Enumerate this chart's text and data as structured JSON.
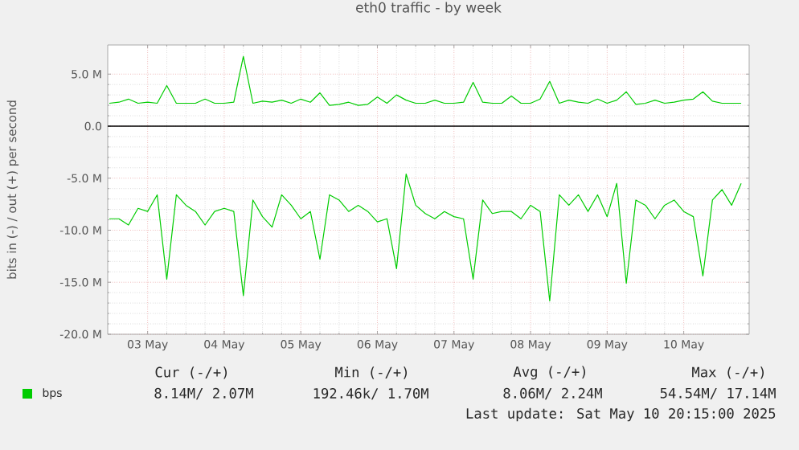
{
  "chart_data": {
    "type": "line",
    "title": "eth0 traffic - by week",
    "ylabel": "bits in (-) / out (+) per second",
    "x": [
      "2025-05-02T12:00",
      "2025-05-02T15:00",
      "2025-05-02T18:00",
      "2025-05-02T21:00",
      "2025-05-03T00:00",
      "2025-05-03T03:00",
      "2025-05-03T06:00",
      "2025-05-03T09:00",
      "2025-05-03T12:00",
      "2025-05-03T15:00",
      "2025-05-03T18:00",
      "2025-05-03T21:00",
      "2025-05-04T00:00",
      "2025-05-04T03:00",
      "2025-05-04T06:00",
      "2025-05-04T09:00",
      "2025-05-04T12:00",
      "2025-05-04T15:00",
      "2025-05-04T18:00",
      "2025-05-04T21:00",
      "2025-05-05T00:00",
      "2025-05-05T03:00",
      "2025-05-05T06:00",
      "2025-05-05T09:00",
      "2025-05-05T12:00",
      "2025-05-05T15:00",
      "2025-05-05T18:00",
      "2025-05-05T21:00",
      "2025-05-06T00:00",
      "2025-05-06T03:00",
      "2025-05-06T06:00",
      "2025-05-06T09:00",
      "2025-05-06T12:00",
      "2025-05-06T15:00",
      "2025-05-06T18:00",
      "2025-05-06T21:00",
      "2025-05-07T00:00",
      "2025-05-07T03:00",
      "2025-05-07T06:00",
      "2025-05-07T09:00",
      "2025-05-07T12:00",
      "2025-05-07T15:00",
      "2025-05-07T18:00",
      "2025-05-07T21:00",
      "2025-05-08T00:00",
      "2025-05-08T03:00",
      "2025-05-08T06:00",
      "2025-05-08T09:00",
      "2025-05-08T12:00",
      "2025-05-08T15:00",
      "2025-05-08T18:00",
      "2025-05-08T21:00",
      "2025-05-09T00:00",
      "2025-05-09T03:00",
      "2025-05-09T06:00",
      "2025-05-09T09:00",
      "2025-05-09T12:00",
      "2025-05-09T15:00",
      "2025-05-09T18:00",
      "2025-05-09T21:00",
      "2025-05-10T00:00",
      "2025-05-10T03:00",
      "2025-05-10T06:00",
      "2025-05-10T09:00",
      "2025-05-10T12:00",
      "2025-05-10T15:00",
      "2025-05-10T18:00"
    ],
    "series": [
      {
        "name": "bps",
        "color": "#00cc00",
        "values": [
          2.2,
          2.3,
          2.6,
          2.2,
          2.3,
          2.2,
          3.9,
          2.2,
          2.2,
          2.2,
          2.6,
          2.2,
          2.2,
          2.3,
          6.7,
          2.2,
          2.4,
          2.3,
          2.5,
          2.2,
          2.6,
          2.3,
          3.2,
          2.0,
          2.1,
          2.3,
          2.0,
          2.1,
          2.8,
          2.2,
          3.0,
          2.5,
          2.2,
          2.2,
          2.5,
          2.2,
          2.2,
          2.3,
          4.2,
          2.3,
          2.2,
          2.2,
          2.9,
          2.2,
          2.2,
          2.6,
          4.3,
          2.2,
          2.5,
          2.3,
          2.2,
          2.6,
          2.2,
          2.5,
          3.3,
          2.1,
          2.2,
          2.5,
          2.2,
          2.3,
          2.5,
          2.6,
          3.3,
          2.4,
          2.2,
          2.2,
          2.2
        ]
      },
      {
        "color": "#00cc00",
        "values": [
          -8.9,
          -8.9,
          -9.5,
          -7.9,
          -8.2,
          -6.6,
          -14.7,
          -6.6,
          -7.6,
          -8.2,
          -9.5,
          -8.2,
          -7.9,
          -8.2,
          -16.3,
          -7.1,
          -8.7,
          -9.7,
          -6.6,
          -7.6,
          -8.9,
          -8.2,
          -12.8,
          -6.6,
          -7.1,
          -8.2,
          -7.6,
          -8.2,
          -9.2,
          -8.9,
          -13.7,
          -4.6,
          -7.6,
          -8.4,
          -8.9,
          -8.2,
          -8.7,
          -8.9,
          -14.7,
          -7.1,
          -8.4,
          -8.2,
          -8.2,
          -8.9,
          -7.6,
          -8.2,
          -16.8,
          -6.6,
          -7.6,
          -6.6,
          -8.2,
          -6.6,
          -8.7,
          -5.5,
          -15.1,
          -7.1,
          -7.6,
          -8.9,
          -7.6,
          -7.1,
          -8.2,
          -8.7,
          -14.4,
          -7.1,
          -6.1,
          -7.6,
          -5.5
        ]
      }
    ],
    "xlim": [
      "2025-05-02T11:30",
      "2025-05-10T20:30"
    ],
    "xticks": [
      {
        "value": "2025-05-03",
        "label": "03 May"
      },
      {
        "value": "2025-05-04",
        "label": "04 May"
      },
      {
        "value": "2025-05-05",
        "label": "05 May"
      },
      {
        "value": "2025-05-06",
        "label": "06 May"
      },
      {
        "value": "2025-05-07",
        "label": "07 May"
      },
      {
        "value": "2025-05-08",
        "label": "08 May"
      },
      {
        "value": "2025-05-09",
        "label": "09 May"
      },
      {
        "value": "2025-05-10",
        "label": "10 May"
      }
    ],
    "ylim": [
      -20,
      7.8
    ],
    "yticks": [
      {
        "value": -20,
        "label": "-20.0 M"
      },
      {
        "value": -15,
        "label": "-15.0 M"
      },
      {
        "value": -10,
        "label": "-10.0 M"
      },
      {
        "value": -5,
        "label": "-5.0 M"
      },
      {
        "value": 0,
        "label": "0.0"
      },
      {
        "value": 5,
        "label": "5.0 M"
      }
    ],
    "ref_lines": [
      {
        "axis": "y",
        "value": 0,
        "color": "#000000"
      }
    ],
    "grid": true,
    "legend": "bottom",
    "marker": "none",
    "line_style": "solid",
    "annotations": [
      "Cur (-/+)",
      "Min (-/+)",
      "Avg (-/+)",
      "Max (-/+)",
      "8.14M/   2.07M",
      "192.46k/   1.70M",
      "8.06M/   2.24M",
      "54.54M/ 17.14M",
      "Last update: Sat May 10 20:15:00 2025"
    ]
  }
}
